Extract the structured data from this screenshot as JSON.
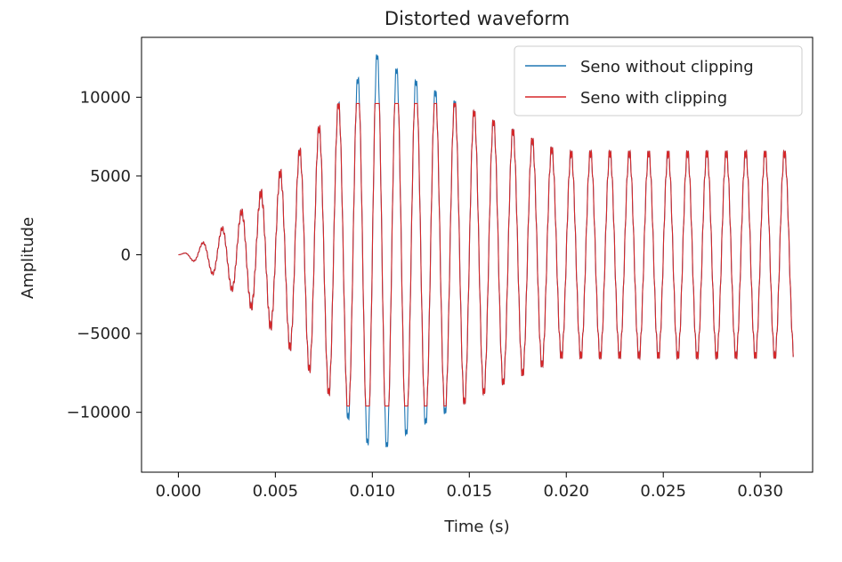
{
  "chart_data": {
    "type": "line",
    "title": "Distorted waveform",
    "xlabel": "Time (s)",
    "ylabel": "Amplitude",
    "xlim": [
      -0.0019,
      0.0327
    ],
    "ylim": [
      -13800,
      13800
    ],
    "xticks": [
      0.0,
      0.005,
      0.01,
      0.015,
      0.02,
      0.025,
      0.03
    ],
    "xtick_labels": [
      "0.000",
      "0.005",
      "0.010",
      "0.015",
      "0.020",
      "0.025",
      "0.030"
    ],
    "yticks": [
      -10000,
      -5000,
      0,
      5000,
      10000
    ],
    "ytick_labels": [
      "−10000",
      "−5000",
      "0",
      "5000",
      "10000"
    ],
    "grid": false,
    "legend_position": "top-right",
    "series": [
      {
        "name": "Seno without clipping",
        "color": "#1f77b4",
        "description_values": {
          "carrier_frequency_hz": 1000,
          "envelope_peak": 12800,
          "envelope_peak_time": 0.0102,
          "steady_amplitude": 6500,
          "steady_from": 0.0197,
          "x_end": 0.0317,
          "ripple_frequency_hz": 11000,
          "ripple_amplitude": 320
        }
      },
      {
        "name": "Seno with clipping",
        "color": "#d62728",
        "clip_fraction": 0.75
      }
    ]
  }
}
